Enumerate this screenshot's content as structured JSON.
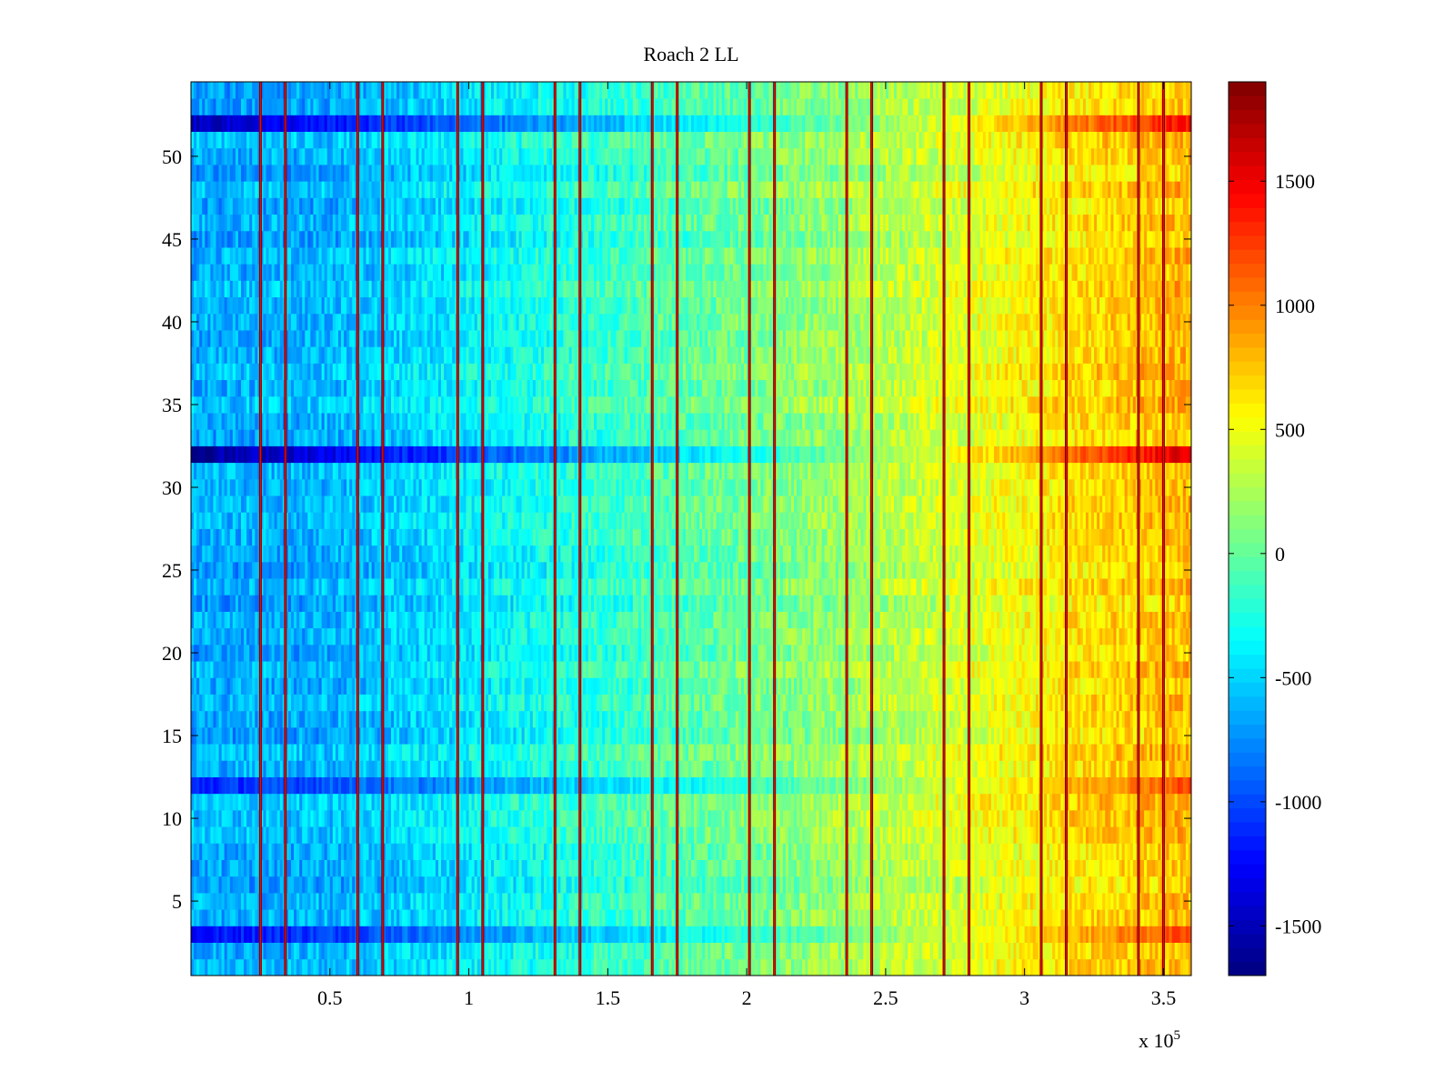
{
  "chart_data": {
    "type": "heatmap",
    "title": "Roach 2 LL",
    "xlabel": "",
    "ylabel": "",
    "x_multiplier_label": "x 10",
    "x_multiplier_exponent": "5",
    "xlim": [
      0,
      3.6
    ],
    "ylim": [
      0.5,
      54.5
    ],
    "x_ticks": [
      0.5,
      1,
      1.5,
      2,
      2.5,
      3,
      3.5
    ],
    "x_tick_labels": [
      "0.5",
      "1",
      "1.5",
      "2",
      "2.5",
      "3",
      "3.5"
    ],
    "y_ticks": [
      5,
      10,
      15,
      20,
      25,
      30,
      35,
      40,
      45,
      50
    ],
    "y_tick_labels": [
      "5",
      "10",
      "15",
      "20",
      "25",
      "30",
      "35",
      "40",
      "45",
      "50"
    ],
    "rows": 54,
    "colorbar": {
      "colormap": "jet",
      "clim": [
        -1700,
        1900
      ],
      "ticks": [
        -1500,
        -1000,
        -500,
        0,
        500,
        1000,
        1500
      ],
      "tick_labels": [
        "-1500",
        "-1000",
        "-500",
        "0",
        "500",
        "1000",
        "1500"
      ]
    },
    "column_trend": [
      {
        "x": 0.0,
        "value": -650
      },
      {
        "x": 0.5,
        "value": -620
      },
      {
        "x": 0.9,
        "value": -450
      },
      {
        "x": 1.3,
        "value": -260
      },
      {
        "x": 1.7,
        "value": -80
      },
      {
        "x": 2.0,
        "value": 40
      },
      {
        "x": 2.4,
        "value": 220
      },
      {
        "x": 2.8,
        "value": 430
      },
      {
        "x": 3.2,
        "value": 650
      },
      {
        "x": 3.6,
        "value": 800
      }
    ],
    "anomalous_rows": [
      {
        "row": 3,
        "left_value": -1250,
        "right_scale": 1.5
      },
      {
        "row": 12,
        "left_value": -1150,
        "right_scale": 1.5
      },
      {
        "row": 32,
        "left_value": -1650,
        "right_scale": 2.0
      },
      {
        "row": 52,
        "left_value": -1500,
        "right_scale": 1.8
      }
    ],
    "vertical_lines_x": [
      0.25,
      0.34,
      0.6,
      0.69,
      0.96,
      1.05,
      1.31,
      1.4,
      1.66,
      1.75,
      2.01,
      2.1,
      2.36,
      2.45,
      2.71,
      2.8,
      3.06,
      3.15,
      3.41,
      3.5
    ],
    "vertical_line_value": 1900
  }
}
